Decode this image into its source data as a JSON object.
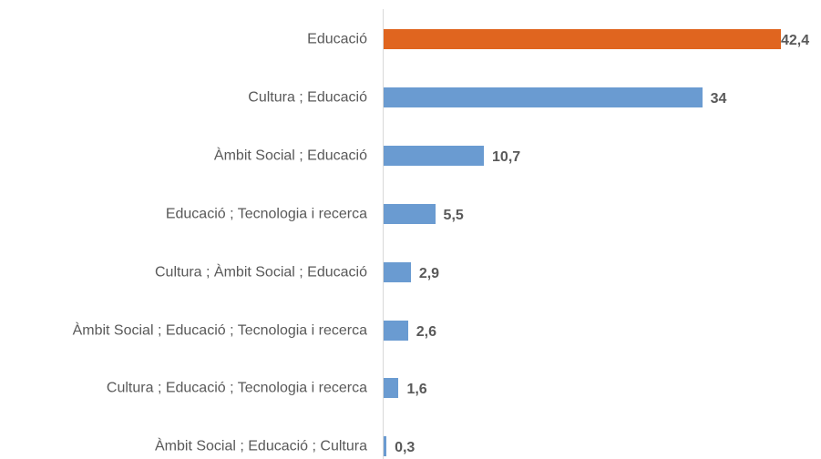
{
  "chart_data": {
    "type": "bar",
    "orientation": "horizontal",
    "categories": [
      "Educació",
      "Cultura ; Educació",
      "Àmbit Social ; Educació",
      "Educació ; Tecnologia i recerca",
      "Cultura ; Àmbit Social ; Educació",
      "Àmbit Social ; Educació ; Tecnologia i recerca",
      "Cultura ; Educació ; Tecnologia i recerca",
      "Àmbit Social ; Educació ; Cultura"
    ],
    "values": [
      42.4,
      34,
      10.7,
      5.5,
      2.9,
      2.6,
      1.6,
      0.3
    ],
    "value_labels": [
      "42,4",
      "34",
      "10,7",
      "5,5",
      "2,9",
      "2,6",
      "1,6",
      "0,3"
    ],
    "colors": [
      "#e0651f",
      "#6a9bd1",
      "#6a9bd1",
      "#6a9bd1",
      "#6a9bd1",
      "#6a9bd1",
      "#6a9bd1",
      "#6a9bd1"
    ]
  }
}
